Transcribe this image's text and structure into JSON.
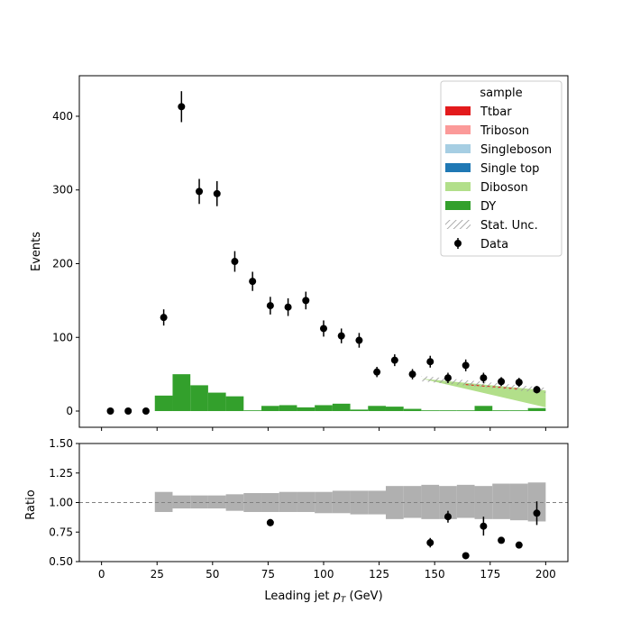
{
  "chart_data": {
    "type": "bar",
    "title": "",
    "xlabel": "Leading jet  p_T (GeV)",
    "xlabel_main": "Leading jet  ",
    "xlabel_symbol": "p",
    "xlabel_sub": "T",
    "xlabel_unit": " (GeV)",
    "ylabel": "Events",
    "ratio_ylabel": "Ratio",
    "xlim": [
      -10,
      210
    ],
    "ylim": [
      -22,
      455
    ],
    "ratio_ylim": [
      0.5,
      1.5
    ],
    "x_ticks": [
      0,
      25,
      50,
      75,
      100,
      125,
      150,
      175,
      200
    ],
    "y_ticks": [
      0,
      100,
      200,
      300,
      400
    ],
    "ratio_y_ticks": [
      "0.50",
      "0.75",
      "1.00",
      "1.25",
      "1.50"
    ],
    "legend": {
      "title": "sample",
      "placement": "top-right",
      "entries": [
        {
          "label": "Ttbar",
          "kind": "fill",
          "color": "#e31a1c"
        },
        {
          "label": "Triboson",
          "kind": "fill",
          "color": "#fb9a99"
        },
        {
          "label": "Singleboson",
          "kind": "fill",
          "color": "#a6cee3"
        },
        {
          "label": "Single top",
          "kind": "fill",
          "color": "#1f78b4"
        },
        {
          "label": "Diboson",
          "kind": "fill",
          "color": "#b2df8a"
        },
        {
          "label": "DY",
          "kind": "fill",
          "color": "#33a02c"
        },
        {
          "label": "Stat. Unc.",
          "kind": "hatch",
          "color": "#999999"
        },
        {
          "label": "Data",
          "kind": "marker",
          "color": "#000000"
        }
      ]
    },
    "bin_edges": [
      0,
      8,
      16,
      24,
      32,
      40,
      48,
      56,
      64,
      72,
      80,
      88,
      96,
      104,
      112,
      120,
      128,
      136,
      144,
      152,
      160,
      168,
      176,
      184,
      192,
      200
    ],
    "stack": [
      {
        "name": "DY",
        "color": "#33a02c",
        "values": [
          0,
          0,
          0,
          21,
          50,
          35,
          25,
          20,
          1,
          7,
          8,
          5,
          8,
          10,
          2,
          7,
          6,
          3,
          1,
          1,
          1,
          7,
          1,
          1,
          4
        ]
      }
    ],
    "diboson_band": {
      "name": "Diboson",
      "color": "#b2df8a",
      "x": [
        144,
        200
      ],
      "y": [
        44,
        28
      ]
    },
    "data": {
      "name": "Data",
      "x": [
        4,
        12,
        20,
        28,
        36,
        44,
        52,
        60,
        68,
        76,
        84,
        92,
        100,
        108,
        116,
        124,
        132,
        140,
        148,
        156,
        164,
        172,
        180,
        188,
        196
      ],
      "y": [
        0,
        0,
        0,
        127,
        413,
        298,
        295,
        203,
        176,
        143,
        141,
        150,
        112,
        102,
        96,
        53,
        69,
        50,
        67,
        45,
        62,
        45,
        40,
        39,
        29
      ],
      "err": [
        0,
        0,
        0,
        11,
        21,
        17,
        17,
        14,
        13,
        12,
        12,
        12,
        11,
        10,
        10,
        7,
        8,
        7,
        8,
        7,
        8,
        7,
        6,
        6,
        5
      ]
    },
    "ratio": {
      "x": [
        76,
        148,
        156,
        164,
        172,
        180,
        188,
        196
      ],
      "y": [
        0.83,
        0.66,
        0.88,
        0.55,
        0.8,
        0.68,
        0.64,
        0.91
      ],
      "err": [
        0.03,
        0.04,
        0.05,
        0.02,
        0.08,
        0.02,
        0.02,
        0.1
      ]
    },
    "ratio_unc": {
      "edges": [
        24,
        32,
        40,
        48,
        56,
        64,
        72,
        80,
        88,
        96,
        104,
        112,
        120,
        128,
        136,
        144,
        152,
        160,
        168,
        176,
        184,
        192,
        200
      ],
      "low": [
        0.92,
        0.95,
        0.95,
        0.95,
        0.93,
        0.92,
        0.92,
        0.92,
        0.92,
        0.91,
        0.91,
        0.9,
        0.9,
        0.86,
        0.87,
        0.86,
        0.86,
        0.87,
        0.86,
        0.86,
        0.85,
        0.84,
        0.82
      ],
      "high": [
        1.09,
        1.06,
        1.06,
        1.06,
        1.07,
        1.08,
        1.08,
        1.09,
        1.09,
        1.09,
        1.1,
        1.1,
        1.1,
        1.14,
        1.14,
        1.15,
        1.14,
        1.15,
        1.14,
        1.16,
        1.16,
        1.17,
        1.22
      ]
    },
    "grid": false
  }
}
